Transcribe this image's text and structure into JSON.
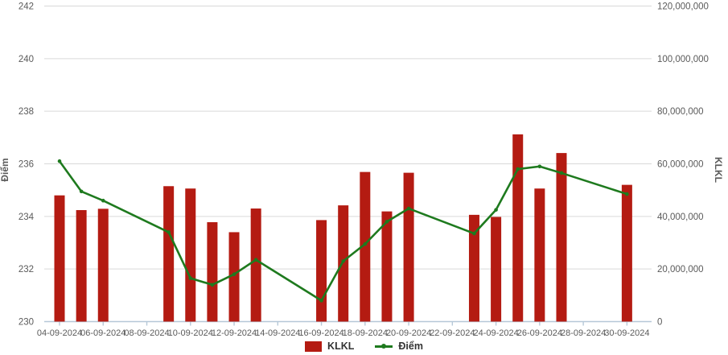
{
  "chart_data": {
    "type": "combo-bar-line",
    "title": "",
    "categories": [
      "04-09-2024",
      "05-09-2024",
      "06-09-2024",
      "09-09-2024",
      "10-09-2024",
      "11-09-2024",
      "12-09-2024",
      "13-09-2024",
      "16-09-2024",
      "17-09-2024",
      "18-09-2024",
      "19-09-2024",
      "20-09-2024",
      "23-09-2024",
      "24-09-2024",
      "25-09-2024",
      "26-09-2024",
      "27-09-2024",
      "30-09-2024"
    ],
    "day_offsets": [
      0,
      1,
      2,
      5,
      6,
      7,
      8,
      9,
      12,
      13,
      14,
      15,
      16,
      19,
      20,
      21,
      22,
      23,
      26
    ],
    "series": [
      {
        "name": "KLKL",
        "type": "bar",
        "axis": "right",
        "values": [
          48000000,
          42400000,
          42900000,
          51500000,
          50600000,
          37800000,
          34000000,
          43000000,
          38600000,
          44200000,
          56900000,
          41900000,
          56600000,
          40600000,
          39800000,
          71200000,
          50600000,
          64100000,
          52000000
        ]
      },
      {
        "name": "Điểm",
        "type": "line",
        "axis": "left",
        "values": [
          236.1,
          234.95,
          234.6,
          233.4,
          231.65,
          231.4,
          231.8,
          232.35,
          230.8,
          232.3,
          232.95,
          233.8,
          234.3,
          233.35,
          234.25,
          235.8,
          235.9,
          235.65,
          234.85
        ]
      }
    ],
    "left_axis": {
      "label": "Điểm",
      "min": 230,
      "max": 242,
      "step": 2,
      "tick_labels": [
        "230",
        "232",
        "234",
        "236",
        "238",
        "240",
        "242"
      ]
    },
    "right_axis": {
      "label": "KLKL",
      "min": 0,
      "max": 120000000,
      "step": 20000000,
      "tick_labels": [
        "0",
        "20,000,000",
        "40,000,000",
        "60,000,000",
        "80,000,000",
        "100,000,000",
        "120,000,000"
      ]
    },
    "x_axis": {
      "tick_labels": [
        "04-09-2024",
        "06-09-2024",
        "08-09-2024",
        "10-09-2024",
        "12-09-2024",
        "14-09-2024",
        "16-09-2024",
        "18-09-2024",
        "20-09-2024",
        "22-09-2024",
        "24-09-2024",
        "26-09-2024",
        "28-09-2024",
        "30-09-2024"
      ],
      "tick_day_offsets": [
        0,
        2,
        4,
        6,
        8,
        10,
        12,
        14,
        16,
        18,
        20,
        22,
        24,
        26
      ]
    },
    "legend": [
      {
        "label": "KLKL",
        "marker": "bar-swatch"
      },
      {
        "label": "Điểm",
        "marker": "line-dot-swatch"
      }
    ],
    "colors": {
      "bar": "#b41b12",
      "line": "#1e7a1e",
      "grid": "#d9d9d9",
      "axis_line": "#b6c8d8",
      "tick_text": "#5a5a5a",
      "legend_text": "#333333"
    },
    "legend_position": "bottom-center",
    "grid": "horizontal-only"
  }
}
